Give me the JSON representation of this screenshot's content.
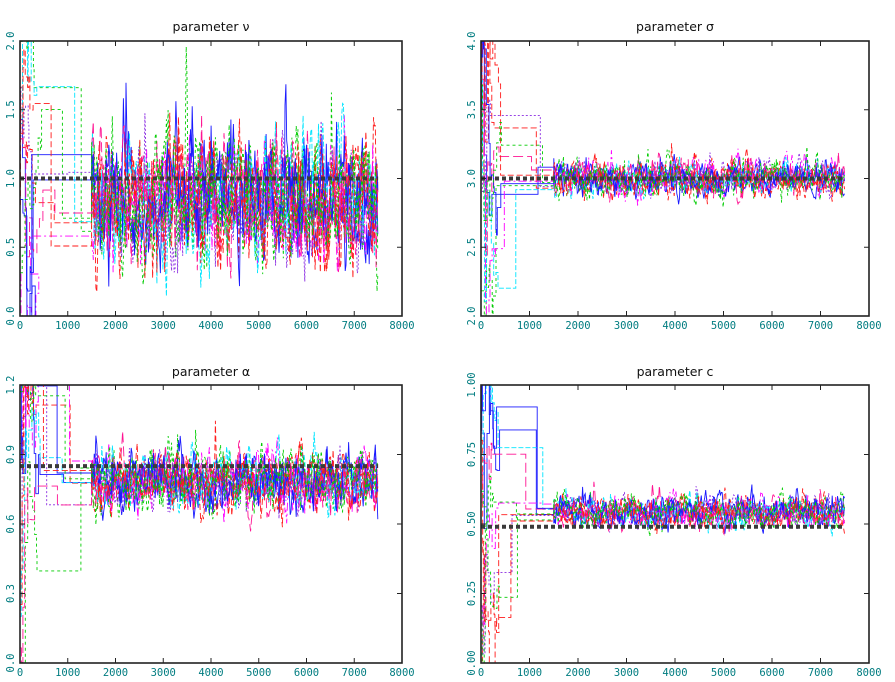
{
  "figure": {
    "axis_label_color": "#007c80",
    "frame_color": "#222222",
    "series_colors": [
      "#1a1aff",
      "#ff1a1a",
      "#00cc00",
      "#ff00ff",
      "#00e5ff",
      "#8a2be2",
      "#ff1493"
    ]
  },
  "chart_data": [
    {
      "type": "line",
      "title": "parameter ν",
      "xlim": [
        0,
        8000
      ],
      "ylim": [
        0.0,
        2.0
      ],
      "xticks": [
        "0",
        "1000",
        "2000",
        "3000",
        "4000",
        "5000",
        "6000",
        "7000",
        "8000"
      ],
      "yticks": [
        "0.0",
        "0.5",
        "1.0",
        "1.5",
        "2.0"
      ],
      "true_value": 1.0,
      "n_chains": 10,
      "burn_in_end": 1500,
      "last_iteration": 7500,
      "stationary_mean": 0.85,
      "stationary_spread": [
        0.3,
        1.7
      ]
    },
    {
      "type": "line",
      "title": "parameter σ",
      "xlim": [
        0,
        8000
      ],
      "ylim": [
        2.0,
        4.0
      ],
      "xticks": [
        "0",
        "1000",
        "2000",
        "3000",
        "4000",
        "5000",
        "6000",
        "7000",
        "8000"
      ],
      "yticks": [
        "2.0",
        "2.5",
        "3.0",
        "3.5",
        "4.0"
      ],
      "true_value": 3.0,
      "n_chains": 10,
      "burn_in_end": 1500,
      "last_iteration": 7500,
      "stationary_mean": 3.0,
      "stationary_spread": [
        2.8,
        3.2
      ]
    },
    {
      "type": "line",
      "title": "parameter α",
      "xlim": [
        0,
        8000
      ],
      "ylim": [
        0.0,
        1.2
      ],
      "xticks": [
        "0",
        "1000",
        "2000",
        "3000",
        "4000",
        "5000",
        "6000",
        "7000",
        "8000"
      ],
      "yticks": [
        "0.0",
        "0.3",
        "0.6",
        "0.9",
        "1.2"
      ],
      "true_value": 0.85,
      "n_chains": 10,
      "burn_in_end": 1500,
      "last_iteration": 7500,
      "stationary_mean": 0.78,
      "stationary_spread": [
        0.55,
        0.95
      ]
    },
    {
      "type": "line",
      "title": "parameter c",
      "xlim": [
        0,
        8000
      ],
      "ylim": [
        0.0,
        1.0
      ],
      "xticks": [
        "0",
        "1000",
        "2000",
        "3000",
        "4000",
        "5000",
        "6000",
        "7000",
        "8000"
      ],
      "yticks": [
        "0.00",
        "0.25",
        "0.50",
        "0.75",
        "1.00"
      ],
      "true_value": 0.49,
      "n_chains": 10,
      "burn_in_end": 1500,
      "last_iteration": 7500,
      "stationary_mean": 0.54,
      "stationary_spread": [
        0.46,
        0.63
      ]
    }
  ]
}
